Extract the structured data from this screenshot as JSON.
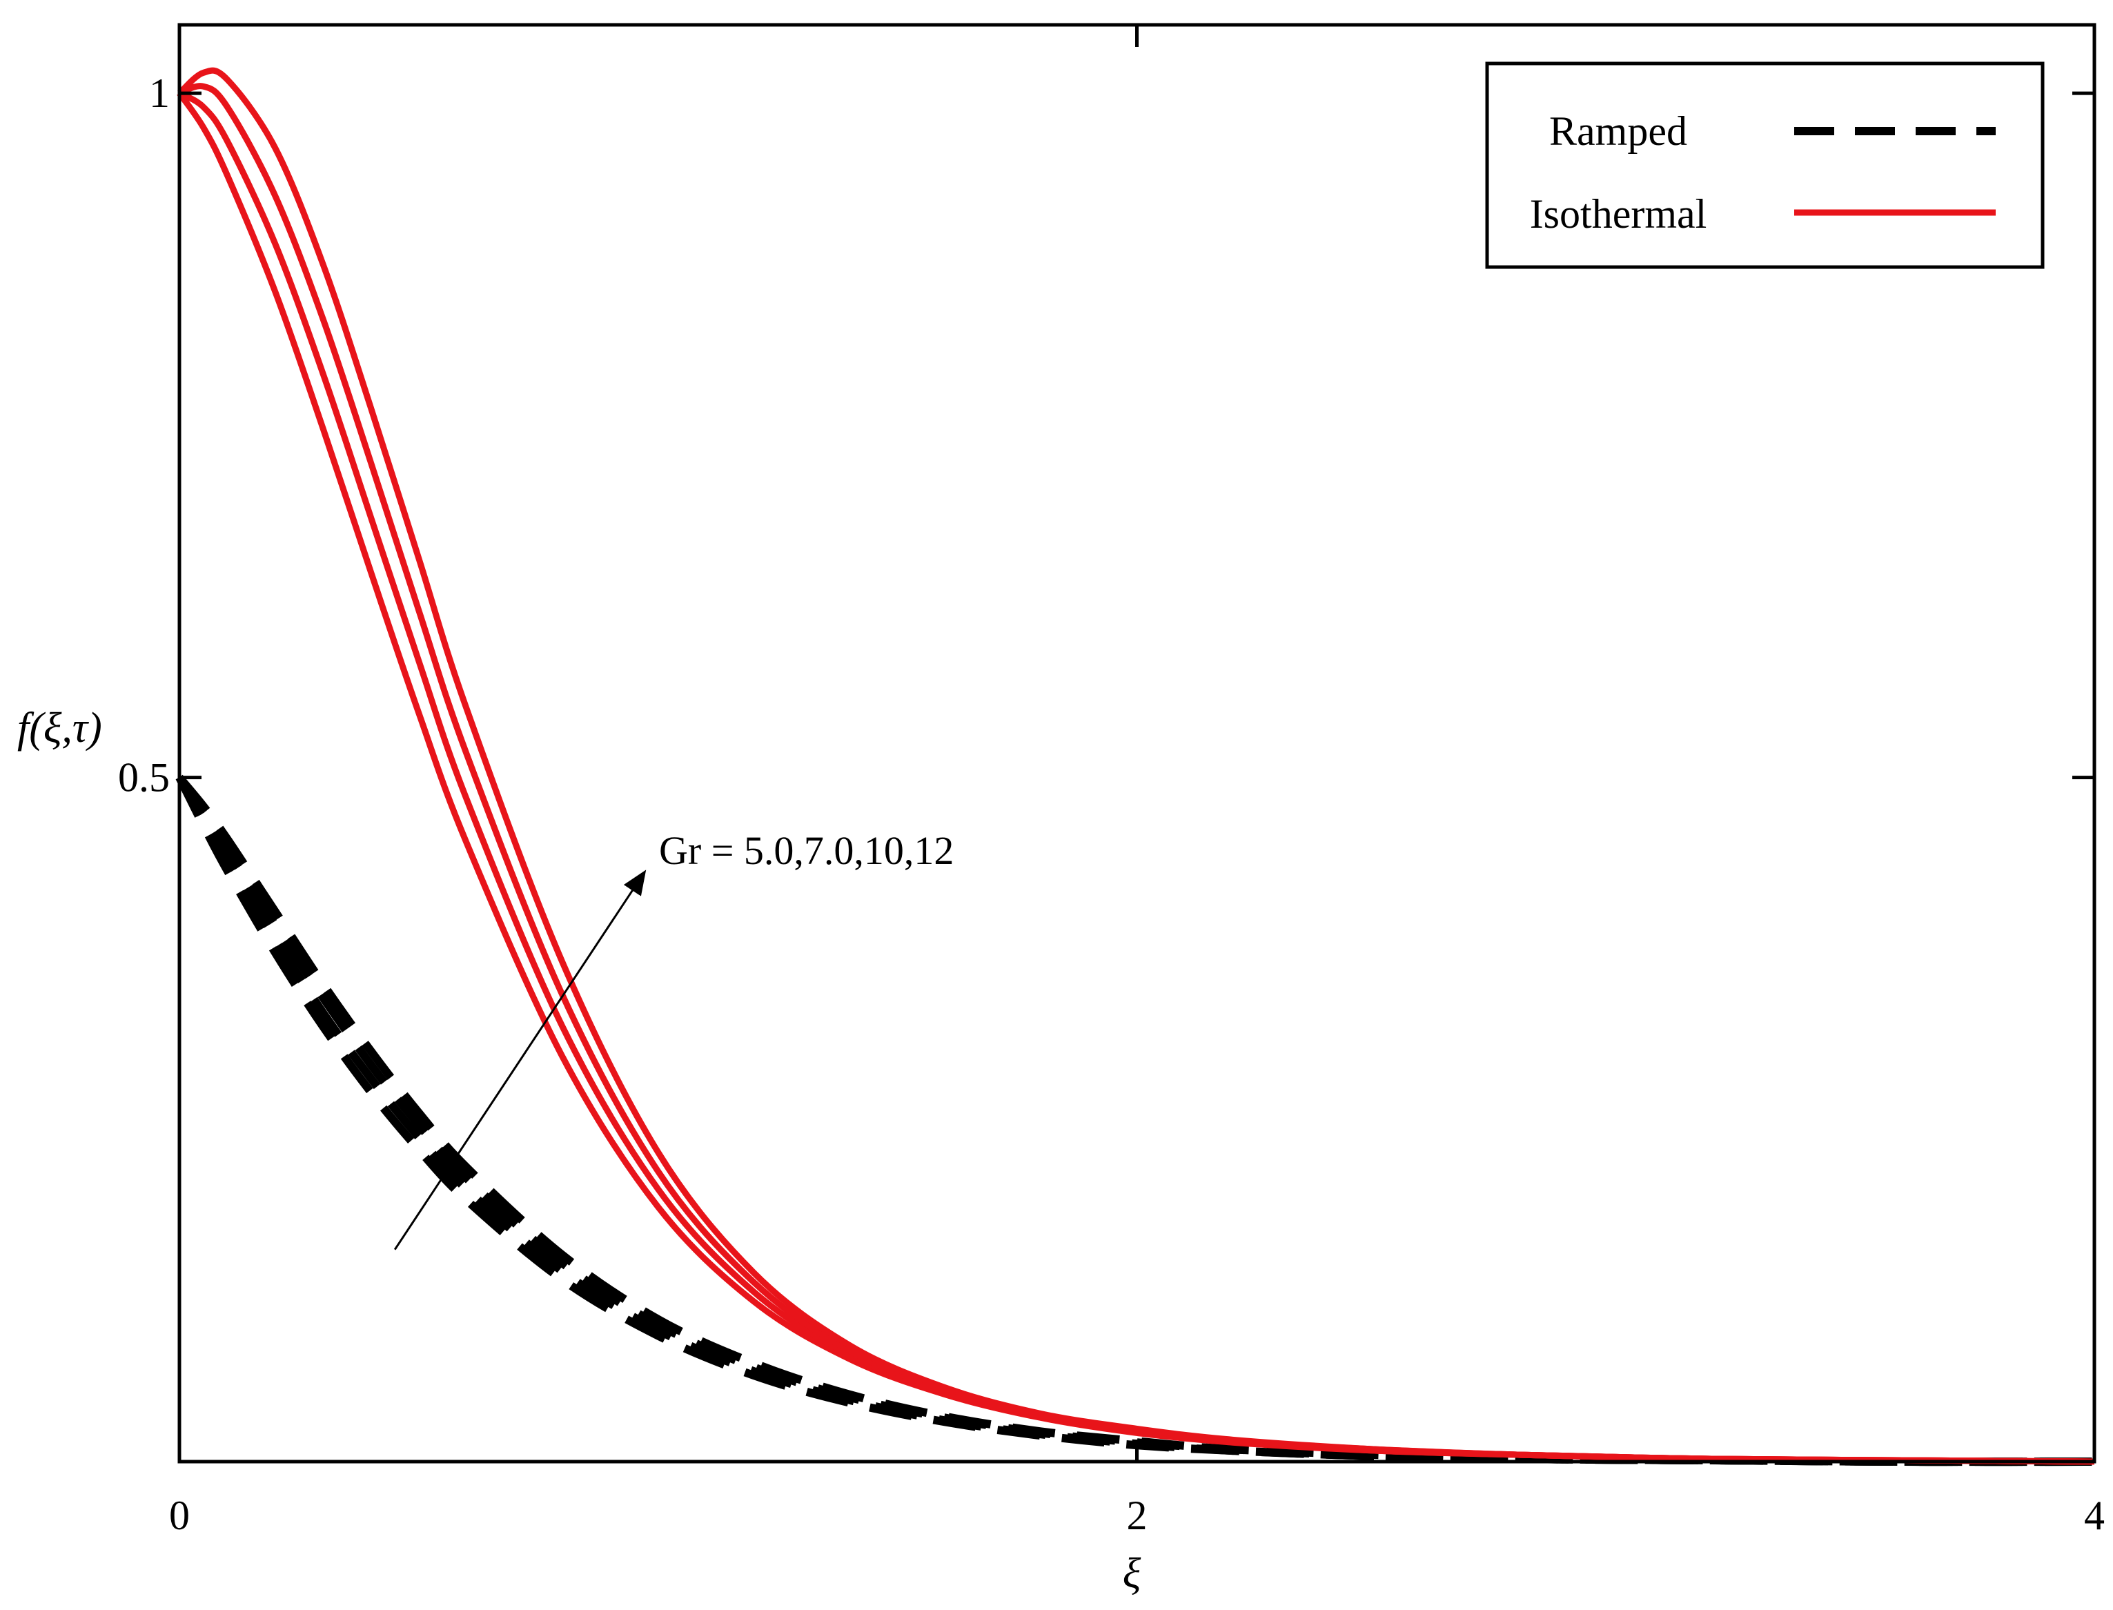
{
  "chart_data": {
    "type": "line",
    "title": "",
    "xlabel": "ξ",
    "ylabel": "f(ξ,τ)",
    "xlim": [
      0,
      4
    ],
    "ylim": [
      0,
      1.05
    ],
    "xticks": [
      {
        "value": 0,
        "label": "0"
      },
      {
        "value": 2,
        "label": "2"
      },
      {
        "value": 4,
        "label": "4"
      }
    ],
    "yticks": [
      {
        "value": 0.5,
        "label": "0.5"
      },
      {
        "value": 1,
        "label": "1"
      }
    ],
    "grid": false,
    "legend": {
      "position": "top-right",
      "entries": [
        {
          "label": "Ramped",
          "style": "dashed",
          "color": "#000000"
        },
        {
          "label": "Isothermal",
          "style": "solid",
          "color": "#e8141a"
        }
      ]
    },
    "annotation": {
      "text": "Gr = 5.0,7.0,10,12",
      "from": [
        0.45,
        0.155
      ],
      "to": [
        0.97,
        0.43
      ]
    },
    "x": [
      0,
      0.05,
      0.1,
      0.2,
      0.3,
      0.4,
      0.5,
      0.6,
      0.8,
      1.0,
      1.2,
      1.4,
      1.6,
      1.8,
      2.0,
      2.2,
      2.5,
      2.8,
      3.2,
      3.6,
      4.0
    ],
    "series": [
      {
        "name": "Ramped, Gr = 5.0",
        "group": "Ramped",
        "values": [
          0.5,
          0.465,
          0.432,
          0.372,
          0.318,
          0.27,
          0.228,
          0.191,
          0.133,
          0.092,
          0.063,
          0.043,
          0.029,
          0.019,
          0.012,
          0.008,
          0.004,
          0.002,
          0.001,
          0.0,
          0.0
        ]
      },
      {
        "name": "Ramped, Gr = 7.0",
        "group": "Ramped",
        "values": [
          0.5,
          0.47,
          0.44,
          0.382,
          0.328,
          0.28,
          0.237,
          0.199,
          0.139,
          0.096,
          0.066,
          0.045,
          0.03,
          0.02,
          0.013,
          0.008,
          0.004,
          0.002,
          0.001,
          0.0,
          0.0
        ]
      },
      {
        "name": "Ramped, Gr = 10",
        "group": "Ramped",
        "values": [
          0.5,
          0.474,
          0.447,
          0.392,
          0.339,
          0.29,
          0.246,
          0.207,
          0.145,
          0.1,
          0.069,
          0.047,
          0.032,
          0.021,
          0.014,
          0.009,
          0.004,
          0.002,
          0.001,
          0.0,
          0.0
        ]
      },
      {
        "name": "Ramped, Gr = 12",
        "group": "Ramped",
        "values": [
          0.5,
          0.479,
          0.455,
          0.402,
          0.349,
          0.3,
          0.255,
          0.215,
          0.151,
          0.104,
          0.072,
          0.049,
          0.033,
          0.022,
          0.015,
          0.009,
          0.005,
          0.002,
          0.001,
          0.0,
          0.0
        ]
      },
      {
        "name": "Isothermal, Gr = 5.0",
        "group": "Isothermal",
        "values": [
          1.0,
          0.975,
          0.94,
          0.855,
          0.755,
          0.65,
          0.547,
          0.452,
          0.296,
          0.186,
          0.117,
          0.075,
          0.049,
          0.032,
          0.021,
          0.014,
          0.008,
          0.005,
          0.002,
          0.001,
          0.0
        ]
      },
      {
        "name": "Isothermal, Gr = 7.0",
        "group": "Isothermal",
        "values": [
          1.0,
          0.99,
          0.965,
          0.89,
          0.795,
          0.69,
          0.585,
          0.484,
          0.318,
          0.199,
          0.124,
          0.078,
          0.05,
          0.033,
          0.022,
          0.015,
          0.008,
          0.005,
          0.002,
          0.001,
          0.0
        ]
      },
      {
        "name": "Isothermal, Gr = 10",
        "group": "Isothermal",
        "values": [
          1.0,
          1.005,
          0.99,
          0.925,
          0.835,
          0.73,
          0.622,
          0.517,
          0.341,
          0.212,
          0.131,
          0.081,
          0.052,
          0.034,
          0.023,
          0.015,
          0.009,
          0.005,
          0.002,
          0.001,
          0.0
        ]
      },
      {
        "name": "Isothermal, Gr = 12",
        "group": "Isothermal",
        "values": [
          1.0,
          1.015,
          1.01,
          0.96,
          0.875,
          0.77,
          0.66,
          0.55,
          0.365,
          0.226,
          0.138,
          0.085,
          0.054,
          0.035,
          0.024,
          0.016,
          0.009,
          0.005,
          0.002,
          0.001,
          0.0
        ]
      }
    ],
    "colors": {
      "Ramped": "#000000",
      "Isothermal": "#e8141a",
      "frame": "#000000"
    }
  }
}
